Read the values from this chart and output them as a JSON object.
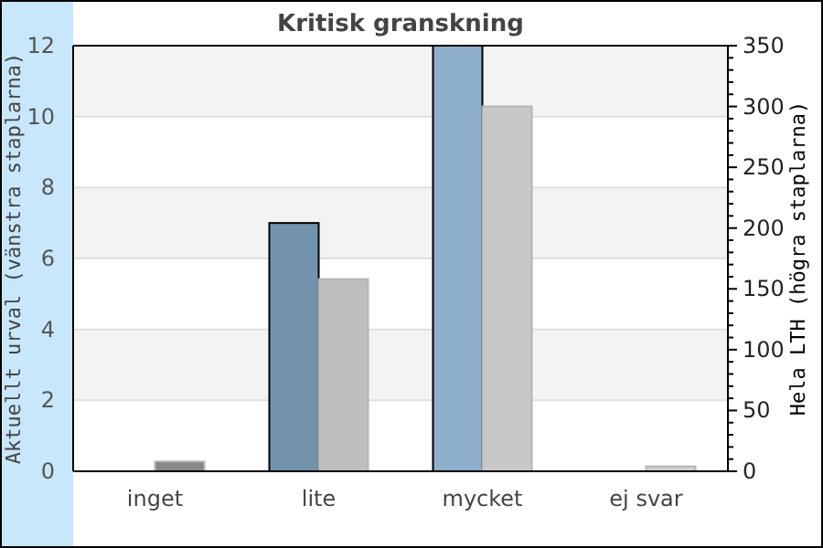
{
  "chart_data": {
    "type": "bar",
    "title": "Kritisk granskning",
    "categories": [
      "inget",
      "lite",
      "mycket",
      "ej svar"
    ],
    "ylabel": "Aktuellt urval (vänstra staplarna)",
    "y2label": "Hela LTH (högra staplarna)",
    "series": [
      {
        "values": [
          0,
          7,
          12,
          0
        ],
        "colors": [
          "#7393ad",
          "#7393ad",
          "#8fb0cc",
          "#8fb0cc"
        ]
      },
      {
        "values": [
          8,
          158,
          300,
          4
        ],
        "axis": "y2",
        "colors": [
          "#888888",
          "#bebebe",
          "#c8c8c8",
          "#d0d0d0"
        ]
      }
    ],
    "ylim": [
      0,
      12
    ],
    "yticks": [
      0,
      2,
      4,
      6,
      8,
      10,
      12
    ],
    "y2lim": [
      0,
      350
    ],
    "y2ticks": [
      0,
      {
        "value": 10,
        "label": null
      },
      {
        "value": 20,
        "label": null
      },
      {
        "value": 30,
        "label": null
      },
      {
        "value": 40,
        "label": null
      },
      50,
      {
        "value": 60,
        "label": null
      },
      {
        "value": 70,
        "label": null
      },
      {
        "value": 80,
        "label": null
      },
      {
        "value": 90,
        "label": null
      },
      100,
      {
        "value": 110,
        "label": null
      },
      {
        "value": 120,
        "label": null
      },
      {
        "value": 130,
        "label": null
      },
      {
        "value": 140,
        "label": null
      },
      150,
      {
        "value": 160,
        "label": null
      },
      {
        "value": 170,
        "label": null
      },
      {
        "value": 180,
        "label": null
      },
      {
        "value": 190,
        "label": null
      },
      200,
      {
        "value": 210,
        "label": null
      },
      {
        "value": 220,
        "label": null
      },
      {
        "value": 230,
        "label": null
      },
      {
        "value": 240,
        "label": null
      },
      250,
      {
        "value": 260,
        "label": null
      },
      {
        "value": 270,
        "label": null
      },
      {
        "value": 280,
        "label": null
      },
      {
        "value": 290,
        "label": null
      },
      300,
      {
        "value": 310,
        "label": null
      },
      {
        "value": 320,
        "label": null
      },
      {
        "value": 330,
        "label": null
      },
      {
        "value": 340,
        "label": null
      },
      350
    ],
    "grid": "y"
  }
}
